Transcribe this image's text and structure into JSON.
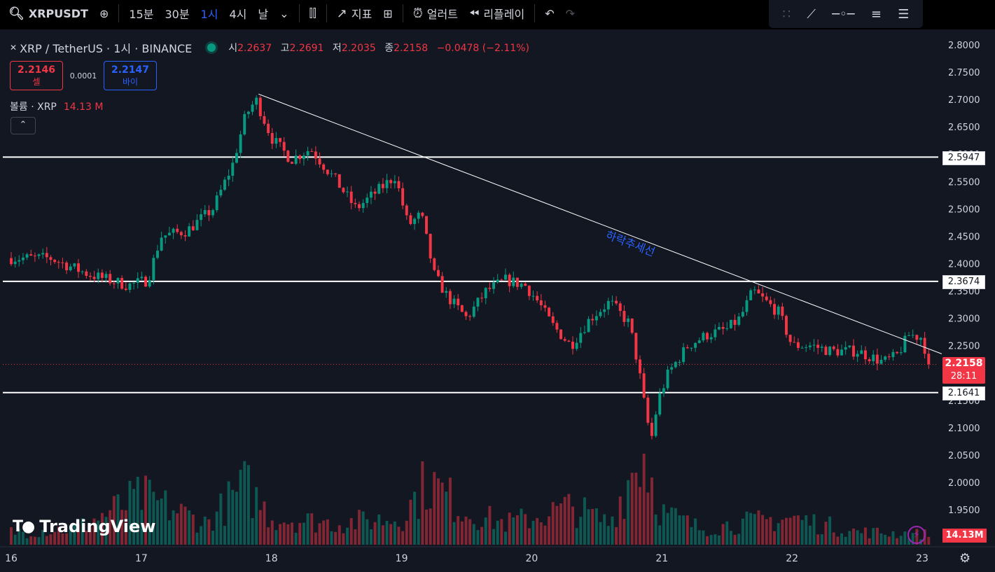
{
  "topbar": {
    "symbol": "XRPUSDT",
    "intervals": [
      "15분",
      "30분",
      "1시",
      "4시",
      "날"
    ],
    "active_interval": "1시",
    "indicators_label": "지표",
    "alerts_label": "얼러트",
    "replay_label": "리플레이"
  },
  "legend": {
    "title": "XRP / TetherUS · 1시 · BINANCE",
    "open_label": "시",
    "open": "2.2637",
    "high_label": "고",
    "high": "2.2691",
    "low_label": "저",
    "low": "2.2035",
    "close_label": "종",
    "close": "2.2158",
    "change": "−0.0478 (−2.11%)"
  },
  "trade": {
    "sell_price": "2.2146",
    "sell_label": "셀",
    "spread": "0.0001",
    "buy_price": "2.2147",
    "buy_label": "바이"
  },
  "volume_legend": {
    "label": "볼륨 · XRP",
    "value": "14.13 M"
  },
  "logo_text": "TradingView",
  "colors": {
    "up": "#089981",
    "down": "#f23645",
    "bg": "#131722",
    "accent": "#2962ff",
    "trendline_label": "#2962ff"
  },
  "chart_data": {
    "type": "candlestick",
    "symbol": "XRP / TetherUS",
    "interval": "1시",
    "exchange": "BINANCE",
    "y_ticks": [
      "2.8000",
      "2.7500",
      "2.7000",
      "2.6500",
      "2.6000",
      "2.5500",
      "2.5000",
      "2.4500",
      "2.4000",
      "2.3500",
      "2.3000",
      "2.2500",
      "2.2000",
      "2.1500",
      "2.1000",
      "2.0500",
      "2.0000",
      "1.9500"
    ],
    "ylim": [
      1.95,
      2.8
    ],
    "x_ticks": [
      "16",
      "17",
      "18",
      "19",
      "20",
      "21",
      "22",
      "23"
    ],
    "horizontal_levels": [
      "2.5947",
      "2.3674",
      "2.1641"
    ],
    "current_price": "2.2158",
    "countdown": "28:11",
    "volume_value": "14.13M",
    "trendline": {
      "label": "하락추세선",
      "start": {
        "day": 17.9,
        "price": 2.71
      },
      "end": {
        "day": 23.15,
        "price": 2.235
      }
    },
    "close_path": [
      [
        16.0,
        2.41
      ],
      [
        16.3,
        2.41
      ],
      [
        16.6,
        2.38
      ],
      [
        16.9,
        2.36
      ],
      [
        17.05,
        2.37
      ],
      [
        17.15,
        2.45
      ],
      [
        17.35,
        2.46
      ],
      [
        17.55,
        2.5
      ],
      [
        17.7,
        2.58
      ],
      [
        17.8,
        2.67
      ],
      [
        17.88,
        2.7
      ],
      [
        18.0,
        2.63
      ],
      [
        18.15,
        2.59
      ],
      [
        18.3,
        2.61
      ],
      [
        18.5,
        2.55
      ],
      [
        18.65,
        2.5
      ],
      [
        18.8,
        2.53
      ],
      [
        18.95,
        2.56
      ],
      [
        19.05,
        2.47
      ],
      [
        19.15,
        2.49
      ],
      [
        19.25,
        2.38
      ],
      [
        19.35,
        2.34
      ],
      [
        19.5,
        2.3
      ],
      [
        19.65,
        2.35
      ],
      [
        19.8,
        2.37
      ],
      [
        19.95,
        2.36
      ],
      [
        20.05,
        2.33
      ],
      [
        20.15,
        2.29
      ],
      [
        20.3,
        2.25
      ],
      [
        20.45,
        2.3
      ],
      [
        20.6,
        2.33
      ],
      [
        20.75,
        2.29
      ],
      [
        20.82,
        2.21
      ],
      [
        20.88,
        2.12
      ],
      [
        20.92,
        2.08
      ],
      [
        20.97,
        2.15
      ],
      [
        21.05,
        2.2
      ],
      [
        21.2,
        2.25
      ],
      [
        21.35,
        2.27
      ],
      [
        21.5,
        2.28
      ],
      [
        21.6,
        2.3
      ],
      [
        21.7,
        2.35
      ],
      [
        21.8,
        2.33
      ],
      [
        21.9,
        2.31
      ],
      [
        22.0,
        2.25
      ],
      [
        22.15,
        2.25
      ],
      [
        22.3,
        2.24
      ],
      [
        22.5,
        2.24
      ],
      [
        22.6,
        2.23
      ],
      [
        22.7,
        2.22
      ],
      [
        22.8,
        2.23
      ],
      [
        22.9,
        2.27
      ],
      [
        23.0,
        2.265
      ],
      [
        23.05,
        2.2158
      ]
    ],
    "volume_profile": [
      [
        16.0,
        0.12
      ],
      [
        16.5,
        0.15
      ],
      [
        17.0,
        0.45
      ],
      [
        17.2,
        0.35
      ],
      [
        17.5,
        0.2
      ],
      [
        17.8,
        0.55
      ],
      [
        18.0,
        0.25
      ],
      [
        18.5,
        0.2
      ],
      [
        19.0,
        0.25
      ],
      [
        19.2,
        0.6
      ],
      [
        19.5,
        0.3
      ],
      [
        19.8,
        0.2
      ],
      [
        20.0,
        0.25
      ],
      [
        20.3,
        0.35
      ],
      [
        20.6,
        0.2
      ],
      [
        20.85,
        0.9
      ],
      [
        21.0,
        0.3
      ],
      [
        21.3,
        0.15
      ],
      [
        21.6,
        0.2
      ],
      [
        22.0,
        0.25
      ],
      [
        22.5,
        0.12
      ],
      [
        23.0,
        0.1
      ]
    ]
  }
}
